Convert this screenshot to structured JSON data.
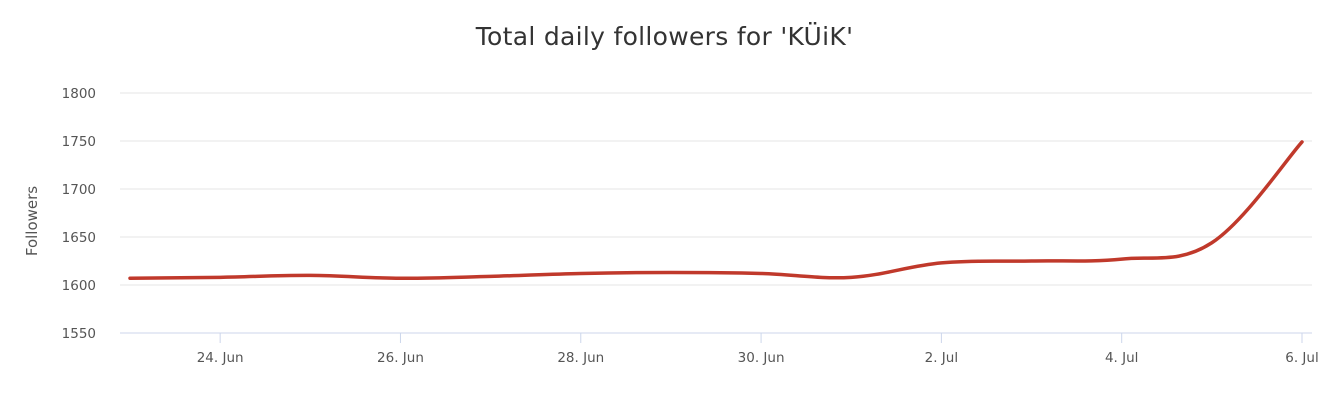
{
  "chart_data": {
    "type": "line",
    "title": "Total daily followers for 'KÜiK'",
    "xlabel": "",
    "ylabel": "Followers",
    "ylim": [
      1550,
      1800
    ],
    "yticks": [
      1550,
      1600,
      1650,
      1700,
      1750,
      1800
    ],
    "x_tick_labels": [
      "24. Jun",
      "26. Jun",
      "28. Jun",
      "30. Jun",
      "2. Jul",
      "4. Jul",
      "6. Jul"
    ],
    "x_tick_dates": [
      "2018-06-24",
      "2018-06-26",
      "2018-06-28",
      "2018-06-30",
      "2018-07-02",
      "2018-07-04",
      "2018-07-06"
    ],
    "xlim": [
      "2018-06-23",
      "2018-07-06"
    ],
    "grid": true,
    "legend": "none",
    "line_color": "#c0392b",
    "series": [
      {
        "x": [
          "2018-06-23",
          "2018-06-24",
          "2018-06-25",
          "2018-06-26",
          "2018-06-27",
          "2018-06-28",
          "2018-06-29",
          "2018-06-30",
          "2018-07-01",
          "2018-07-02",
          "2018-07-03",
          "2018-07-04",
          "2018-07-05",
          "2018-07-06"
        ],
        "values": [
          1607,
          1608,
          1610,
          1607,
          1609,
          1612,
          1613,
          1612,
          1608,
          1623,
          1625,
          1627,
          1644,
          1749
        ]
      }
    ]
  }
}
